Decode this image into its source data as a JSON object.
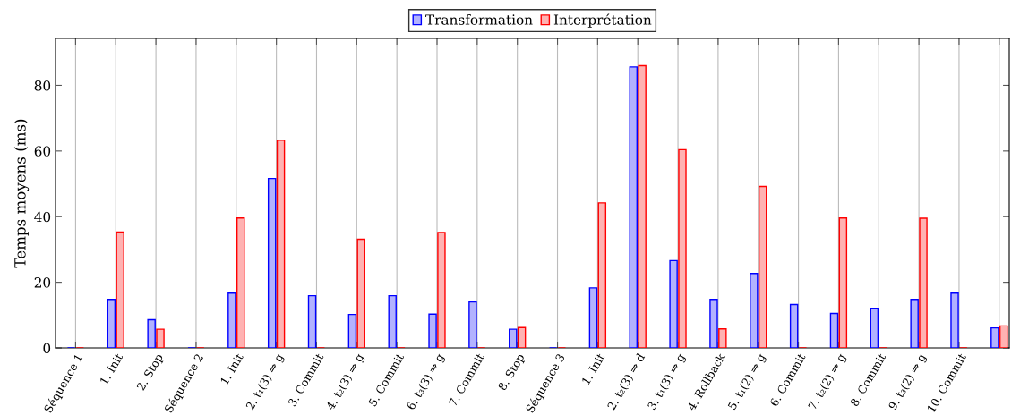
{
  "chart_data": {
    "type": "bar",
    "ylabel": "Temps moyens (ms)",
    "categories": [
      "Séquence 1",
      "1. Init",
      "2. Stop",
      "Séquence 2",
      "1. Init",
      "2. t₁(3) ⇒ g",
      "3. Commit",
      "4. t₂(3) ⇒ g",
      "5. Commit",
      "6. t₃(3) ⇒ g",
      "7. Commit",
      "8. Stop",
      "Séquence 3",
      "1. Init",
      "2. t₂(3) ⇒ d",
      "3. t₁(3) ⇒ g",
      "4. Rollback",
      "5. t₁(2) ⇒ g",
      "6. Commit",
      "7. t₂(2) ⇒ g",
      "8. Commit",
      "9. t₃(2) ⇒ g",
      "10. Commit",
      null
    ],
    "series": [
      {
        "name": "Transformation",
        "color": "#0000ff",
        "values": [
          0,
          14.8,
          8.6,
          0,
          16.7,
          51.6,
          15.9,
          10.2,
          15.9,
          10.3,
          14.0,
          5.7,
          0,
          18.3,
          85.6,
          26.6,
          14.8,
          22.7,
          13.2,
          10.5,
          12.1,
          14.8,
          16.7,
          6.1
        ]
      },
      {
        "name": "Interprétation",
        "color": "#ff0000",
        "values": [
          0,
          35.3,
          5.7,
          0,
          39.6,
          63.3,
          0,
          33.1,
          0,
          35.2,
          0,
          6.2,
          0,
          44.2,
          86.0,
          60.4,
          5.8,
          49.2,
          0,
          39.6,
          0,
          39.5,
          0,
          6.7
        ]
      }
    ],
    "ylim": [
      0,
      94.3
    ],
    "yticks": [
      0,
      20,
      40,
      60,
      80
    ],
    "grid": "x",
    "legend": "top"
  }
}
